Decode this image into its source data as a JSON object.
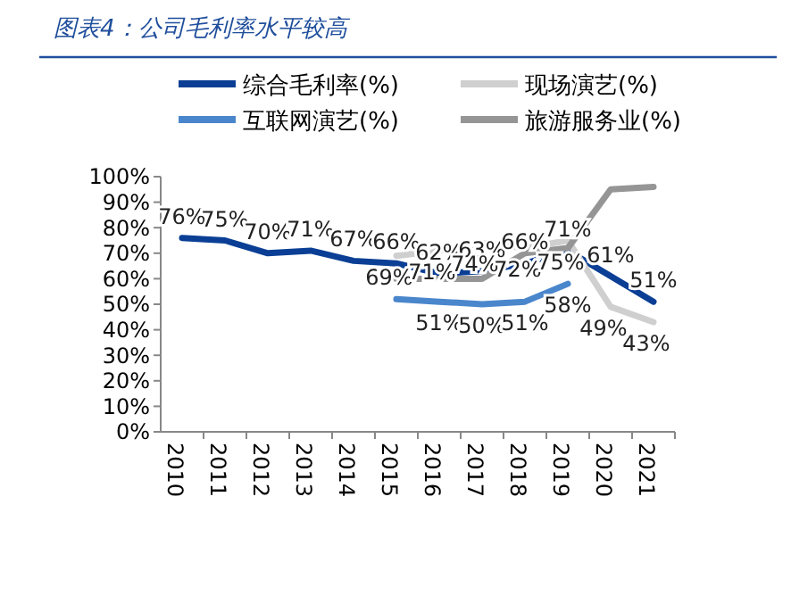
{
  "chart_data": {
    "type": "line",
    "title": "图表4：公司毛利率水平较高",
    "categories": [
      "2010",
      "2011",
      "2012",
      "2013",
      "2014",
      "2015",
      "2016",
      "2017",
      "2018",
      "2019",
      "2020",
      "2021"
    ],
    "series": [
      {
        "name": "综合毛利率(%)",
        "color": "#0b3f95",
        "values": [
          76,
          75,
          70,
          71,
          67,
          66,
          62,
          63,
          66,
          71,
          61,
          51
        ],
        "value_labels": [
          "76%",
          "75%",
          "70%",
          "71%",
          "67%",
          "66%",
          "62%",
          "63%",
          "66%",
          "71%",
          "61%",
          "51%"
        ]
      },
      {
        "name": "现场演艺(%)",
        "color": "#cfcfcf",
        "values": [
          null,
          null,
          null,
          null,
          null,
          69,
          71,
          74,
          72,
          75,
          49,
          43
        ],
        "value_labels": [
          null,
          null,
          null,
          null,
          null,
          "69%",
          "71%",
          "74%",
          "72%",
          "75%",
          "49%",
          "43%"
        ]
      },
      {
        "name": "互联网演艺(%)",
        "color": "#4a86cc",
        "values": [
          null,
          null,
          null,
          null,
          null,
          52,
          51,
          50,
          51,
          58,
          null,
          null
        ],
        "value_labels": [
          null,
          null,
          null,
          null,
          null,
          null,
          "51%",
          "50%",
          "51%",
          "58%",
          null,
          null
        ]
      },
      {
        "name": "旅游服务业(%)",
        "color": "#959595",
        "values": [
          null,
          null,
          null,
          null,
          null,
          60,
          60,
          60,
          70,
          72,
          95,
          96
        ]
      }
    ],
    "ylim": [
      0,
      100
    ],
    "yticks": [
      {
        "value": 0,
        "label": "0%"
      },
      {
        "value": 10,
        "label": "10%"
      },
      {
        "value": 20,
        "label": "20%"
      },
      {
        "value": 30,
        "label": "30%"
      },
      {
        "value": 40,
        "label": "40%"
      },
      {
        "value": 50,
        "label": "50%"
      },
      {
        "value": 60,
        "label": "60%"
      },
      {
        "value": 70,
        "label": "70%"
      },
      {
        "value": 80,
        "label": "80%"
      },
      {
        "value": 90,
        "label": "90%"
      },
      {
        "value": 100,
        "label": "100%"
      }
    ],
    "legend": "top",
    "marker": "none",
    "grid": false
  }
}
